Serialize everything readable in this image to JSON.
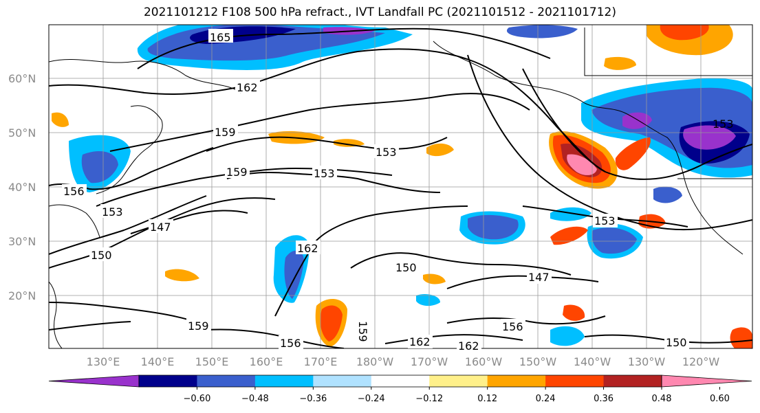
{
  "title": "2021101212 F108 500 hPa refract., IVT Landfall PC (2021101512 - 2021101712)",
  "lat_labels": [
    "60°N",
    "50°N",
    "40°N",
    "30°N",
    "20°N"
  ],
  "lon_labels": [
    "130°E",
    "140°E",
    "150°E",
    "160°E",
    "170°E",
    "180°W",
    "170°W",
    "160°W",
    "150°W",
    "140°W",
    "130°W",
    "120°W"
  ],
  "contour_labels": [
    "165",
    "162",
    "159",
    "159",
    "153",
    "153",
    "156",
    "153",
    "147",
    "150",
    "162",
    "150",
    "147",
    "153",
    "159",
    "156",
    "162",
    "162",
    "156",
    "150",
    "153",
    "159"
  ],
  "colorbar": {
    "colors": [
      "#9932cc",
      "#00008b",
      "#3a5fcd",
      "#00bfff",
      "#b0e2ff",
      "#ffffff",
      "#fff08a",
      "#ffa500",
      "#ff4500",
      "#b22222",
      "#ff88b0"
    ],
    "tick_labels": [
      "-0.60",
      "-0.48",
      "-0.36",
      "-0.24",
      "-0.12",
      "0.12",
      "0.24",
      "0.36",
      "0.48",
      "0.60"
    ]
  },
  "colors": {
    "land_lines": "#000000",
    "grid": "#999999"
  }
}
